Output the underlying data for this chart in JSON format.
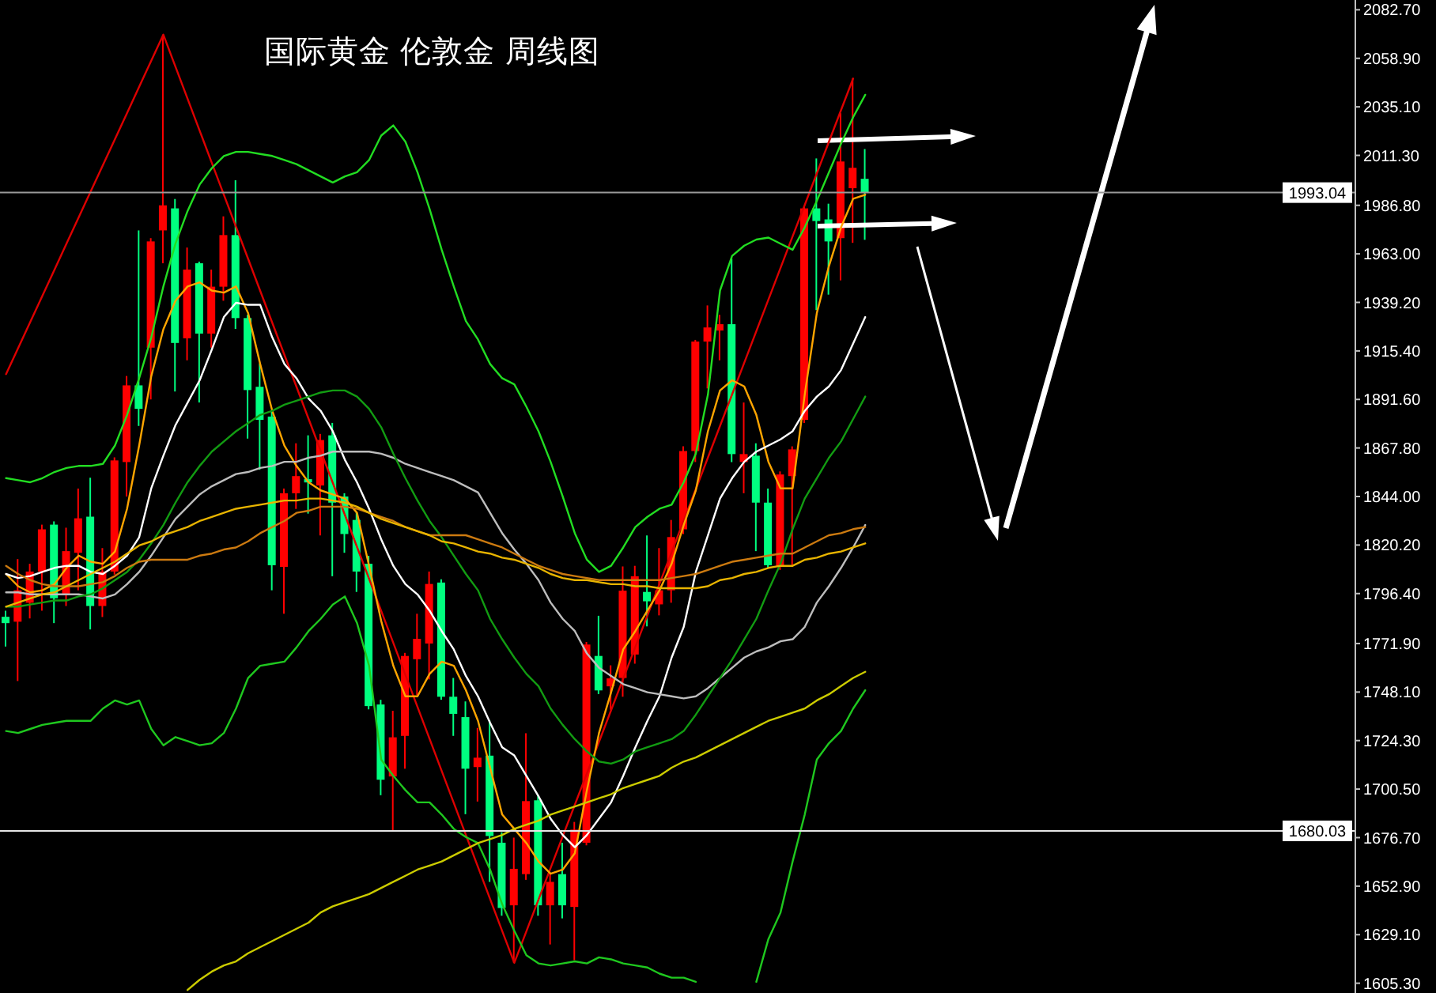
{
  "chart_data": {
    "type": "candlestick",
    "title": "国际黄金 伦敦金 周线图",
    "categories": [
      null,
      null,
      null,
      null,
      null,
      null,
      null,
      null,
      null,
      null,
      null,
      null,
      null,
      null,
      null,
      null,
      null,
      null,
      null,
      null,
      null,
      null,
      null,
      null,
      null,
      null,
      null,
      null,
      null,
      null,
      null,
      null,
      null,
      null,
      null,
      null,
      null,
      null,
      null,
      null,
      null,
      null,
      null,
      null,
      null,
      null,
      null,
      null,
      null,
      null,
      null,
      null,
      null,
      null,
      null,
      null,
      null,
      null,
      null,
      null,
      null,
      null,
      null,
      null,
      null,
      null,
      null,
      null,
      null,
      null,
      null,
      null,
      null,
      null,
      null,
      null,
      null,
      null,
      null,
      null,
      null,
      null,
      null,
      null,
      null,
      null,
      null,
      null,
      null,
      null,
      null,
      null,
      null,
      null,
      null,
      null,
      null,
      null,
      null,
      null,
      null,
      null,
      null,
      null,
      null,
      null,
      null,
      null,
      null,
      null,
      null,
      null
    ],
    "ohlc": [
      [
        1785.0,
        1788.0,
        1770.4,
        1781.9
      ],
      [
        1782.6,
        1813.3,
        1753.5,
        1798.0
      ],
      [
        1791.9,
        1811.0,
        1784.2,
        1807.2
      ],
      [
        1807.2,
        1830.2,
        1788.0,
        1827.9
      ],
      [
        1830.2,
        1831.8,
        1781.9,
        1794.1
      ],
      [
        1795.7,
        1828.7,
        1790.3,
        1817.2
      ],
      [
        1816.4,
        1847.9,
        1798.0,
        1833.3
      ],
      [
        1834.1,
        1853.2,
        1778.8,
        1790.3
      ],
      [
        1790.3,
        1818.7,
        1784.9,
        1807.2
      ],
      [
        1807.2,
        1863.2,
        1805.7,
        1861.7
      ],
      [
        1860.9,
        1903.1,
        1844.0,
        1898.5
      ],
      [
        1898.5,
        1974.5,
        1878.6,
        1887.0
      ],
      [
        1917.0,
        1970.7,
        1891.6,
        1969.1
      ],
      [
        1974.5,
        2070.5,
        1958.4,
        1986.8
      ],
      [
        1985.3,
        1989.9,
        1895.5,
        1919.3
      ],
      [
        1921.6,
        1966.1,
        1910.8,
        1955.3
      ],
      [
        1958.4,
        1959.2,
        1890.1,
        1923.9
      ],
      [
        1923.9,
        1955.3,
        1917.0,
        1946.9
      ],
      [
        1946.9,
        1981.4,
        1940.0,
        1972.2
      ],
      [
        1972.2,
        1999.1,
        1926.2,
        1931.5
      ],
      [
        1931.5,
        1933.1,
        1872.4,
        1896.2
      ],
      [
        1897.8,
        1909.3,
        1857.1,
        1881.6
      ],
      [
        1883.2,
        1886.3,
        1798.0,
        1810.3
      ],
      [
        1809.5,
        1847.9,
        1786.5,
        1845.6
      ],
      [
        1845.6,
        1870.1,
        1837.9,
        1854.0
      ],
      [
        1852.5,
        1874.0,
        1835.6,
        1850.9
      ],
      [
        1849.4,
        1874.7,
        1824.9,
        1871.7
      ],
      [
        1874.0,
        1880.1,
        1804.9,
        1841.0
      ],
      [
        1844.0,
        1845.6,
        1816.4,
        1825.6
      ],
      [
        1832.5,
        1836.4,
        1797.2,
        1807.2
      ],
      [
        1811.0,
        1814.9,
        1739.6,
        1741.2
      ],
      [
        1742.0,
        1744.3,
        1697.5,
        1705.1
      ],
      [
        1706.7,
        1738.9,
        1679.8,
        1725.9
      ],
      [
        1726.6,
        1767.3,
        1710.5,
        1765.8
      ],
      [
        1764.2,
        1786.5,
        1746.6,
        1774.2
      ],
      [
        1771.9,
        1807.2,
        1754.3,
        1801.1
      ],
      [
        1801.8,
        1803.4,
        1744.3,
        1745.8
      ],
      [
        1745.8,
        1755.0,
        1726.6,
        1737.4
      ],
      [
        1735.8,
        1743.5,
        1688.2,
        1710.5
      ],
      [
        1711.3,
        1730.5,
        1694.4,
        1715.9
      ],
      [
        1716.9,
        1734.3,
        1655.0,
        1677.5
      ],
      [
        1674.2,
        1679.3,
        1638.4,
        1642.2
      ],
      [
        1643.5,
        1676.7,
        1615.3,
        1661.4
      ],
      [
        1658.8,
        1727.9,
        1656.0,
        1694.6
      ],
      [
        1695.0,
        1697.5,
        1638.4,
        1643.5
      ],
      [
        1643.5,
        1658.8,
        1624.3,
        1655.0
      ],
      [
        1658.8,
        1674.2,
        1637.1,
        1643.5
      ],
      [
        1642.7,
        1684.4,
        1616.6,
        1680.6
      ],
      [
        1674.2,
        1772.7,
        1672.9,
        1771.4
      ],
      [
        1765.8,
        1785.5,
        1747.1,
        1748.9
      ],
      [
        1750.9,
        1761.2,
        1739.4,
        1754.8
      ],
      [
        1755.0,
        1809.7,
        1745.8,
        1797.8
      ],
      [
        1766.5,
        1810.0,
        1762.0,
        1804.9
      ],
      [
        1797.2,
        1824.9,
        1780.3,
        1792.6
      ],
      [
        1791.1,
        1818.7,
        1785.7,
        1798.0
      ],
      [
        1798.0,
        1832.5,
        1791.9,
        1824.1
      ],
      [
        1827.9,
        1868.6,
        1825.6,
        1866.3
      ],
      [
        1866.3,
        1920.8,
        1860.9,
        1920.0
      ],
      [
        1920.0,
        1937.7,
        1897.0,
        1926.9
      ],
      [
        1925.4,
        1933.1,
        1910.8,
        1928.5
      ],
      [
        1928.5,
        1960.7,
        1860.9,
        1864.8
      ],
      [
        1860.9,
        1890.1,
        1845.6,
        1864.8
      ],
      [
        1864.0,
        1870.1,
        1817.2,
        1841.0
      ],
      [
        1841.0,
        1847.9,
        1808.7,
        1810.3
      ],
      [
        1809.5,
        1856.3,
        1808.0,
        1854.8
      ],
      [
        1854.0,
        1868.6,
        1809.5,
        1867.1
      ],
      [
        1881.6,
        1986.0,
        1880.1,
        1985.3
      ],
      [
        1985.3,
        2009.8,
        1935.4,
        1979.1
      ],
      [
        1979.9,
        1987.6,
        1943.0,
        1969.1
      ],
      [
        1970.7,
        2032.0,
        1950.0,
        2008.3
      ],
      [
        1995.2,
        2049.0,
        1968.4,
        2005.2
      ],
      [
        1999.8,
        2014.4,
        1969.9,
        1993.0
      ],
      null,
      null,
      null,
      null,
      null,
      null,
      null,
      null,
      null,
      null,
      null,
      null,
      null,
      null,
      null,
      null,
      null,
      null,
      null,
      null,
      null,
      null,
      null,
      null,
      null,
      null,
      null,
      null,
      null,
      null,
      null,
      null,
      null,
      null,
      null,
      null,
      null,
      null,
      null,
      null
    ],
    "colors": [
      "#00ff80",
      "#ff0000",
      "#ff0000",
      "#ff0000",
      "#00ff80",
      "#ff0000",
      "#ff0000",
      "#00ff80",
      "#ff0000",
      "#ff0000",
      "#ff0000",
      "#00ff80",
      "#ff0000",
      "#ff0000",
      "#00ff80",
      "#ff0000",
      "#00ff80",
      "#ff0000",
      "#ff0000",
      "#00ff80",
      "#00ff80",
      "#00ff80",
      "#00ff80",
      "#ff0000",
      "#ff0000",
      "#00ff80",
      "#ff0000",
      "#00ff80",
      "#00ff80",
      "#00ff80",
      "#00ff80",
      "#00ff80",
      "#ff0000",
      "#ff0000",
      "#ff0000",
      "#ff0000",
      "#00ff80",
      "#00ff80",
      "#00ff80",
      "#ff0000",
      "#00ff80",
      "#00ff80",
      "#ff0000",
      "#ff0000",
      "#00ff80",
      "#ff0000",
      "#00ff80",
      "#ff0000",
      "#ff0000",
      "#00ff80",
      "#ff0000",
      "#ff0000",
      "#ff0000",
      "#00ff80",
      "#ff0000",
      "#ff0000",
      "#ff0000",
      "#ff0000",
      "#ff0000",
      "#ff0000",
      "#00ff80",
      "#ff0000",
      "#00ff80",
      "#00ff80",
      "#ff0000",
      "#ff0000",
      "#ff0000",
      "#00ff80",
      "#00ff80",
      "#ff0000",
      "#ff0000",
      "#00ff80",
      null,
      null,
      null,
      null,
      null,
      null,
      null,
      null,
      null,
      null,
      null,
      null,
      null,
      null,
      null,
      null,
      null,
      null,
      null,
      null,
      null,
      null,
      null,
      null,
      null,
      null,
      null,
      null,
      null,
      null,
      null,
      null,
      null,
      null,
      null,
      null,
      null,
      null,
      null,
      null
    ],
    "series": [
      {
        "type": "line",
        "color": "#dd0000",
        "values": [
          1904.0,
          1916.8,
          1929.6,
          1942.4,
          1955.2,
          1968.1,
          1980.9,
          1993.7,
          2006.5,
          2019.3,
          2032.1,
          2044.9,
          2057.7,
          2070.5,
          2054.8,
          2039.1,
          2023.4,
          2007.7,
          1992.0,
          1976.3,
          1960.6,
          1944.9,
          1929.2,
          1913.5,
          1897.8,
          1882.1,
          1866.4,
          1850.7,
          1835.0,
          1819.3,
          1803.6,
          1787.9,
          1772.2,
          1756.5,
          1740.8,
          1725.1,
          1709.4,
          1693.7,
          1678.0,
          1662.3,
          1646.6,
          1630.9,
          1615.3,
          1630.8,
          1646.3,
          1661.8,
          1677.3,
          1692.8,
          1708.2,
          1723.7,
          1739.2,
          1754.7,
          1770.2,
          1785.7,
          1801.2,
          1816.7,
          1832.2,
          1847.6,
          1863.1,
          1878.6,
          1894.1,
          1909.6,
          1925.1,
          1940.6,
          1956.1,
          1971.6,
          1987.0,
          2002.5,
          2018.0,
          2033.5,
          2049.0,
          null,
          null,
          null,
          null,
          null,
          null,
          null,
          null,
          null,
          null,
          null,
          null,
          null,
          null,
          null,
          null,
          null,
          null,
          null,
          null,
          null,
          null,
          null,
          null,
          null,
          null,
          null,
          null,
          null,
          null,
          null,
          null,
          null,
          null,
          null,
          null,
          null,
          null,
          null,
          null,
          null
        ]
      },
      {
        "type": "line",
        "color": "#ffa500",
        "values": [
          1806,
          1800,
          1797,
          1798,
          1801,
          1809,
          1815,
          1812,
          1811,
          1817,
          1838,
          1869,
          1903,
          1926,
          1940,
          1947,
          1949,
          1945,
          1944,
          1947,
          1934,
          1909,
          1886,
          1869,
          1859,
          1851,
          1847,
          1845,
          1843,
          1836,
          1810,
          1783,
          1761,
          1746,
          1746,
          1757,
          1763,
          1761,
          1749,
          1734,
          1711,
          1688,
          1681,
          1674,
          1665,
          1659,
          1661,
          1669,
          1700,
          1728,
          1748,
          1769,
          1778,
          1788,
          1798,
          1811,
          1830,
          1847,
          1876,
          1896,
          1901,
          1898,
          1884,
          1861,
          1848,
          1848,
          1894,
          1934,
          1957,
          1976,
          1990,
          1992,
          null,
          null,
          null,
          null,
          null,
          null,
          null,
          null,
          null,
          null,
          null,
          null,
          null,
          null,
          null,
          null,
          null,
          null,
          null,
          null,
          null,
          null,
          null,
          null,
          null,
          null,
          null,
          null,
          null,
          null,
          null,
          null,
          null,
          null,
          null,
          null,
          null,
          null,
          null,
          null
        ]
      },
      {
        "type": "line",
        "color": "#ffffff",
        "values": [
          1806,
          1804,
          1805,
          1807,
          1809,
          1810,
          1810,
          1807,
          1806,
          1810,
          1815,
          1824,
          1848,
          1864,
          1879,
          1890,
          1901,
          1916,
          1932,
          1939,
          1938,
          1938,
          1922,
          1909,
          1902,
          1892,
          1886,
          1876,
          1862,
          1851,
          1838,
          1823,
          1810,
          1801,
          1796,
          1788,
          1778,
          1769,
          1756,
          1746,
          1733,
          1721,
          1717,
          1707,
          1697,
          1686,
          1678,
          1672,
          1678,
          1686,
          1694,
          1707,
          1721,
          1734,
          1746,
          1765,
          1780,
          1807,
          1825,
          1843,
          1853,
          1861,
          1866,
          1869,
          1872,
          1876,
          1886,
          1893,
          1898,
          1906,
          1919,
          1932,
          null,
          null,
          null,
          null,
          null,
          null,
          null,
          null,
          null,
          null,
          null,
          null,
          null,
          null,
          null,
          null,
          null,
          null,
          null,
          null,
          null,
          null,
          null,
          null,
          null,
          null,
          null,
          null,
          null,
          null,
          null,
          null,
          null,
          null,
          null,
          null,
          null,
          null,
          null,
          null
        ]
      },
      {
        "type": "line",
        "color": "#bdbdbd",
        "values": [
          1797,
          1797,
          1796,
          1796,
          1796,
          1796,
          1796,
          1795,
          1794,
          1796,
          1801,
          1807,
          1815,
          1824,
          1833,
          1839,
          1845,
          1849,
          1852,
          1855,
          1856,
          1858,
          1859,
          1861,
          1861,
          1863,
          1864,
          1866,
          1866,
          1866,
          1866,
          1865,
          1863,
          1860,
          1858,
          1856,
          1854,
          1852,
          1849,
          1846,
          1836,
          1826,
          1818,
          1811,
          1803,
          1792,
          1784,
          1778,
          1767,
          1760,
          1756,
          1752,
          1750,
          1748,
          1747,
          1746,
          1745,
          1746,
          1750,
          1755,
          1760,
          1765,
          1768,
          1770,
          1773,
          1774,
          1780,
          1792,
          1800,
          1809,
          1819,
          1830,
          null,
          null,
          null,
          null,
          null,
          null,
          null,
          null,
          null,
          null,
          null,
          null,
          null,
          null,
          null,
          null,
          null,
          null,
          null,
          null,
          null,
          null,
          null,
          null,
          null,
          null,
          null,
          null,
          null,
          null,
          null,
          null,
          null,
          null,
          null,
          null,
          null,
          null,
          null,
          null
        ]
      },
      {
        "type": "line",
        "color": "#22dd22",
        "values": [
          1853,
          1852,
          1851,
          1853,
          1856,
          1858,
          1859,
          1859,
          1860,
          1869,
          1884,
          1902,
          1922,
          1947,
          1968,
          1984,
          1997,
          2005,
          2011,
          2013,
          2013,
          2012,
          2011,
          2009,
          2007,
          2004,
          2001,
          1998,
          2001,
          2003,
          2009,
          2021,
          2026,
          2018,
          2003,
          1985,
          1965,
          1947,
          1930,
          1921,
          1909,
          1902,
          1899,
          1888,
          1876,
          1861,
          1844,
          1826,
          1813,
          1807,
          1810,
          1819,
          1829,
          1834,
          1838,
          1840,
          1851,
          1865,
          1894,
          1945,
          1962,
          1967,
          1970,
          1971,
          1968,
          1965,
          1976,
          1989,
          2003,
          2017,
          2030,
          2041,
          null,
          null,
          null,
          null,
          null,
          null,
          null,
          null,
          null,
          null,
          null,
          null,
          null,
          null,
          null,
          null,
          null,
          null,
          null,
          null,
          null,
          null,
          null,
          null,
          null,
          null,
          null,
          null,
          null,
          null,
          null,
          null,
          null,
          null,
          null,
          null,
          null,
          null,
          null,
          null
        ]
      },
      {
        "type": "line",
        "color": "#129c12",
        "values": [
          1790,
          1790,
          1791,
          1792,
          1793,
          1793,
          1795,
          1796,
          1799,
          1803,
          1807,
          1813,
          1821,
          1830,
          1841,
          1851,
          1859,
          1866,
          1871,
          1876,
          1880,
          1884,
          1886,
          1889,
          1891,
          1893,
          1895,
          1896,
          1896,
          1893,
          1887,
          1878,
          1865,
          1853,
          1842,
          1832,
          1824,
          1815,
          1806,
          1798,
          1784,
          1774,
          1765,
          1757,
          1751,
          1740,
          1732,
          1725,
          1719,
          1714,
          1713,
          1715,
          1719,
          1721,
          1723,
          1725,
          1729,
          1737,
          1746,
          1755,
          1764,
          1774,
          1784,
          1798,
          1811,
          1828,
          1843,
          1853,
          1863,
          1871,
          1882,
          1893,
          null,
          null,
          null,
          null,
          null,
          null,
          null,
          null,
          null,
          null,
          null,
          null,
          null,
          null,
          null,
          null,
          null,
          null,
          null,
          null,
          null,
          null,
          null,
          null,
          null,
          null,
          null,
          null,
          null,
          null,
          null,
          null,
          null,
          null,
          null,
          null,
          null,
          null,
          null,
          null
        ]
      },
      {
        "type": "line",
        "color": "#1fc81f",
        "values": [
          1729,
          1728,
          1730,
          1732,
          1733,
          1734,
          1734,
          1734,
          1740,
          1744,
          1742,
          1744,
          1730,
          1722,
          1726,
          1724,
          1722,
          1723,
          1728,
          1740,
          1755,
          1761,
          1762,
          1763,
          1770,
          1778,
          1784,
          1791,
          1795,
          1782,
          1761,
          1715,
          1707,
          1700,
          1694,
          1694,
          1688,
          1681,
          1677,
          1674,
          1661,
          1644,
          1631,
          1619,
          1615,
          1614,
          1615,
          1616,
          1615,
          1618,
          1617,
          1615,
          1614,
          1613,
          1610,
          1608,
          1608,
          1606,
          null,
          null,
          null,
          null,
          1606,
          1627,
          1640,
          1665,
          1688,
          1715,
          1723,
          1729,
          1740,
          1749,
          null,
          null,
          null,
          null,
          null,
          null,
          null,
          null,
          null,
          null,
          null,
          null,
          null,
          null,
          null,
          null,
          null,
          null,
          null,
          null,
          null,
          null,
          null,
          null,
          null,
          null,
          null,
          null,
          null,
          null,
          null,
          null,
          null,
          null,
          null,
          null,
          null,
          null,
          null,
          null
        ]
      },
      {
        "type": "line",
        "color": "#cc7a10",
        "values": [
          1810,
          1806,
          1803,
          1801,
          1800,
          1800,
          1800,
          1801,
          1802,
          1805,
          1809,
          1812,
          1813,
          1813,
          1813,
          1813,
          1815,
          1816,
          1818,
          1819,
          1822,
          1826,
          1829,
          1832,
          1836,
          1837,
          1839,
          1839,
          1839,
          1838,
          1836,
          1834,
          1832,
          1829,
          1827,
          1825,
          1825,
          1825,
          1825,
          1823,
          1821,
          1819,
          1816,
          1813,
          1810,
          1808,
          1806,
          1805,
          1804,
          1803,
          1803,
          1803,
          1803,
          1803,
          1803,
          1804,
          1805,
          1806,
          1808,
          1810,
          1812,
          1813,
          1814,
          1815,
          1816,
          1816,
          1819,
          1822,
          1825,
          1826,
          1828,
          1829,
          null,
          null,
          null,
          null,
          null,
          null,
          null,
          null,
          null,
          null,
          null,
          null,
          null,
          null,
          null,
          null,
          null,
          null,
          null,
          null,
          null,
          null,
          null,
          null,
          null,
          null,
          null,
          null,
          null,
          null,
          null,
          null,
          null,
          null,
          null,
          null,
          null,
          null,
          null,
          null
        ]
      },
      {
        "type": "line",
        "color": "#e8b400",
        "values": [
          1790,
          1792,
          1794,
          1796,
          1797,
          1800,
          1803,
          1806,
          1809,
          1812,
          1816,
          1820,
          1822,
          1825,
          1827,
          1829,
          1832,
          1834,
          1836,
          1838,
          1839,
          1840,
          1841,
          1842,
          1842,
          1843,
          1843,
          1842,
          1841,
          1839,
          1836,
          1833,
          1831,
          1829,
          1827,
          1825,
          1822,
          1821,
          1819,
          1817,
          1816,
          1814,
          1813,
          1811,
          1809,
          1806,
          1804,
          1803,
          1803,
          1802,
          1801,
          1801,
          1800,
          1800,
          1799,
          1799,
          1799,
          1799,
          1800,
          1803,
          1804,
          1806,
          1807,
          1809,
          1810,
          1810,
          1813,
          1814,
          1816,
          1817,
          1819,
          1821,
          null,
          null,
          null,
          null,
          null,
          null,
          null,
          null,
          null,
          null,
          null,
          null,
          null,
          null,
          null,
          null,
          null,
          null,
          null,
          null,
          null,
          null,
          null,
          null,
          null,
          null,
          null,
          null,
          null,
          null,
          null,
          null,
          null,
          null,
          null,
          null,
          null,
          null,
          null,
          null
        ]
      },
      {
        "type": "line",
        "color": "#cccc00",
        "values": [
          null,
          null,
          null,
          null,
          null,
          null,
          null,
          null,
          null,
          null,
          null,
          null,
          null,
          null,
          null,
          1602,
          1607,
          1611,
          1614,
          1616,
          1620,
          1623,
          1626,
          1629,
          1632,
          1635,
          1640,
          1643,
          1645,
          1647,
          1649,
          1652,
          1655,
          1658,
          1661,
          1663,
          1665,
          1668,
          1671,
          1674,
          1676,
          1678,
          1681,
          1683,
          1685,
          1688,
          1690,
          1692,
          1694,
          1696,
          1698,
          1701,
          1703,
          1705,
          1707,
          1711,
          1714,
          1716,
          1719,
          1722,
          1725,
          1728,
          1731,
          1734,
          1736,
          1738,
          1740,
          1744,
          1747,
          1751,
          1755,
          1758,
          null,
          null,
          null,
          null,
          null,
          null,
          null,
          null,
          null,
          null,
          null,
          null,
          null,
          null,
          null,
          null,
          null,
          null,
          null,
          null,
          null,
          null,
          null,
          null,
          null,
          null,
          null,
          null,
          null,
          null,
          null,
          null,
          null,
          null,
          null,
          null,
          null,
          null,
          null,
          null
        ]
      }
    ],
    "ylim": [
      1600.5,
      2087.5
    ],
    "yticks": [
      {
        "value": 2082.7,
        "label": "2082.70"
      },
      {
        "value": 2058.9,
        "label": "2058.90"
      },
      {
        "value": 2035.1,
        "label": "2035.10"
      },
      {
        "value": 2011.3,
        "label": "2011.30"
      },
      {
        "value": 1986.8,
        "label": "1986.80"
      },
      {
        "value": 1963,
        "label": "1963.00"
      },
      {
        "value": 1939.2,
        "label": "1939.20"
      },
      {
        "value": 1915.4,
        "label": "1915.40"
      },
      {
        "value": 1891.6,
        "label": "1891.60"
      },
      {
        "value": 1867.8,
        "label": "1867.80"
      },
      {
        "value": 1844,
        "label": "1844.00"
      },
      {
        "value": 1820.2,
        "label": "1820.20"
      },
      {
        "value": 1796.4,
        "label": "1796.40"
      },
      {
        "value": 1771.9,
        "label": "1771.90"
      },
      {
        "value": 1748.1,
        "label": "1748.10"
      },
      {
        "value": 1724.3,
        "label": "1724.30"
      },
      {
        "value": 1700.5,
        "label": "1700.50"
      },
      {
        "value": 1676.7,
        "label": "1676.70"
      },
      {
        "value": 1652.9,
        "label": "1652.90"
      },
      {
        "value": 1629.1,
        "label": "1629.10"
      },
      {
        "value": 1605.3,
        "label": "1605.30"
      }
    ],
    "ref_lines": [
      {
        "axis": "y",
        "value": 1993.04,
        "label": "1993.04",
        "color": "#9a9a9a"
      },
      {
        "axis": "y",
        "value": 1680.03,
        "label": "1680.03",
        "color": "#e6e6e6"
      }
    ],
    "tick_labels": "y"
  }
}
